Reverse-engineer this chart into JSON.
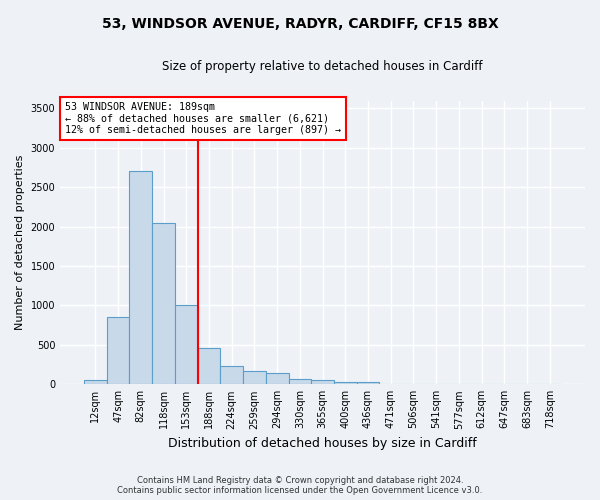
{
  "title_line1": "53, WINDSOR AVENUE, RADYR, CARDIFF, CF15 8BX",
  "title_line2": "Size of property relative to detached houses in Cardiff",
  "xlabel": "Distribution of detached houses by size in Cardiff",
  "ylabel": "Number of detached properties",
  "bar_labels": [
    "12sqm",
    "47sqm",
    "82sqm",
    "118sqm",
    "153sqm",
    "188sqm",
    "224sqm",
    "259sqm",
    "294sqm",
    "330sqm",
    "365sqm",
    "400sqm",
    "436sqm",
    "471sqm",
    "506sqm",
    "541sqm",
    "577sqm",
    "612sqm",
    "647sqm",
    "683sqm",
    "718sqm"
  ],
  "bar_values": [
    60,
    850,
    2700,
    2050,
    1010,
    460,
    230,
    175,
    140,
    70,
    55,
    30,
    25,
    0,
    5,
    0,
    0,
    0,
    0,
    0,
    0
  ],
  "bar_color": "#c8d9ea",
  "bar_edge_color": "#5b9ec9",
  "vline_index": 5,
  "annotation_line1": "53 WINDSOR AVENUE: 189sqm",
  "annotation_line2": "← 88% of detached houses are smaller (6,621)",
  "annotation_line3": "12% of semi-detached houses are larger (897) →",
  "annotation_box_color": "white",
  "annotation_box_edge_color": "red",
  "vline_color": "red",
  "ylim": [
    0,
    3600
  ],
  "yticks": [
    0,
    500,
    1000,
    1500,
    2000,
    2500,
    3000,
    3500
  ],
  "footer_line1": "Contains HM Land Registry data © Crown copyright and database right 2024.",
  "footer_line2": "Contains public sector information licensed under the Open Government Licence v3.0.",
  "background_color": "#eef2f7",
  "grid_color": "white",
  "title_fontsize": 10,
  "subtitle_fontsize": 8.5,
  "ylabel_fontsize": 8,
  "xlabel_fontsize": 9,
  "tick_fontsize": 7,
  "footer_fontsize": 6
}
